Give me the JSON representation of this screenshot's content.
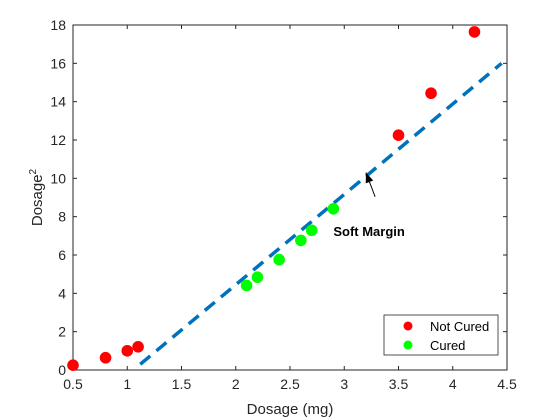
{
  "chart_data": {
    "type": "scatter",
    "xlabel": "Dosage (mg)",
    "ylabel": "Dosage",
    "ylabel_superscript": "2",
    "xlim": [
      0.5,
      4.5
    ],
    "ylim": [
      0,
      18
    ],
    "xticks": [
      "0.5",
      "1",
      "1.5",
      "2",
      "2.5",
      "3",
      "3.5",
      "4",
      "4.5"
    ],
    "yticks": [
      "0",
      "2",
      "4",
      "6",
      "8",
      "10",
      "12",
      "14",
      "16",
      "18"
    ],
    "grid": false,
    "legend_location": "bottom-right",
    "series": [
      {
        "name": "Not Cured",
        "color": "#ff0000",
        "marker": "circle",
        "x": [
          0.5,
          0.8,
          1.0,
          1.1,
          3.5,
          3.8,
          4.2
        ],
        "y": [
          0.25,
          0.64,
          1.0,
          1.21,
          12.25,
          14.44,
          17.64
        ]
      },
      {
        "name": "Cured",
        "color": "#00ff00",
        "marker": "circle",
        "x": [
          2.1,
          2.2,
          2.4,
          2.6,
          2.7,
          2.9
        ],
        "y": [
          4.41,
          4.84,
          5.76,
          6.76,
          7.29,
          8.41
        ]
      }
    ],
    "boundary": {
      "style": "dashed",
      "color": "#0072bd",
      "x": [
        1.12,
        4.45
      ],
      "y": [
        0.3,
        16.0
      ]
    },
    "annotation": {
      "text": "Soft Margin",
      "target_x": 3.2,
      "target_y": 10.3,
      "text_x": 3.1,
      "text_y": 6.9
    }
  }
}
